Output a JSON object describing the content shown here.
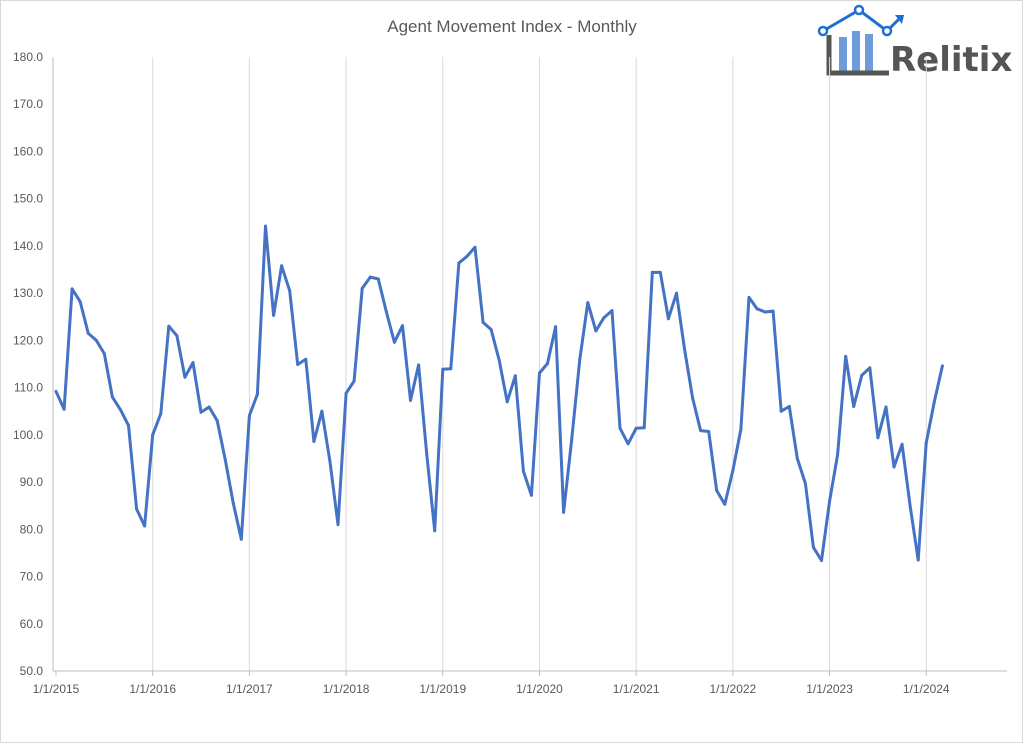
{
  "colors": {
    "series": "#4472c4",
    "gridline": "#d9d9d9",
    "axis": "#bfbfbf",
    "text": "#595959",
    "logo_text": "#555555",
    "logo_accent": "#1f6fd1",
    "logo_bars": "#6f9bd8"
  },
  "logo": {
    "text": "Relitix",
    "icon": "house-chart-logo"
  },
  "chart_data": {
    "type": "line",
    "title": "Agent Movement Index - Monthly",
    "xlabel": "",
    "ylabel": "",
    "ylim": [
      50,
      180
    ],
    "yticks": [
      50,
      60,
      70,
      80,
      90,
      100,
      110,
      120,
      130,
      140,
      150,
      160,
      170,
      180
    ],
    "ytick_labels": [
      "50.0",
      "60.0",
      "70.0",
      "80.0",
      "90.0",
      "100.0",
      "110.0",
      "120.0",
      "130.0",
      "140.0",
      "150.0",
      "160.0",
      "170.0",
      "180.0"
    ],
    "x_start": "2015-01",
    "xtick_labels": [
      "1/1/2015",
      "1/1/2016",
      "1/1/2017",
      "1/1/2018",
      "1/1/2019",
      "1/1/2020",
      "1/1/2021",
      "1/1/2022",
      "1/1/2023",
      "1/1/2024"
    ],
    "grid": {
      "vertical": true,
      "horizontal": false
    },
    "legend": "none",
    "series": [
      {
        "values": [
          109.2,
          105.4,
          130.9,
          128.2,
          121.5,
          120.0,
          117.2,
          108.0,
          105.3,
          102.0,
          84.3,
          80.7,
          100.0,
          104.5,
          123.0,
          121.0,
          112.2,
          115.3,
          104.8,
          105.9,
          103.0,
          94.8,
          85.5,
          77.9,
          104.1,
          108.6,
          144.2,
          125.3,
          135.8,
          130.5,
          114.9,
          116.0,
          98.6,
          105.0,
          94.3,
          81.0,
          108.8,
          111.4,
          131.0,
          133.4,
          133.0,
          126.0,
          119.6,
          123.1,
          107.3,
          114.8,
          96.0,
          79.7,
          113.9,
          114.0,
          136.4,
          137.8,
          139.7,
          123.8,
          122.3,
          115.8,
          107.0,
          112.5,
          92.3,
          87.2,
          113.1,
          115.1,
          122.9,
          83.6,
          99.0,
          116.0,
          128.0,
          122.0,
          124.8,
          126.3,
          101.4,
          98.1,
          101.4,
          101.5,
          134.4,
          134.4,
          124.6,
          130.0,
          118.2,
          107.8,
          100.9,
          100.7,
          88.2,
          85.3,
          92.5,
          101.2,
          129.1,
          126.7,
          126.0,
          126.2,
          105.0,
          106.0,
          95.0,
          89.7,
          76.2,
          73.4,
          86.0,
          95.8,
          116.6,
          106.0,
          112.6,
          114.2,
          99.4,
          105.9,
          93.2,
          98.0,
          85.0,
          73.5,
          98.3,
          107.0,
          114.6
        ]
      }
    ]
  }
}
